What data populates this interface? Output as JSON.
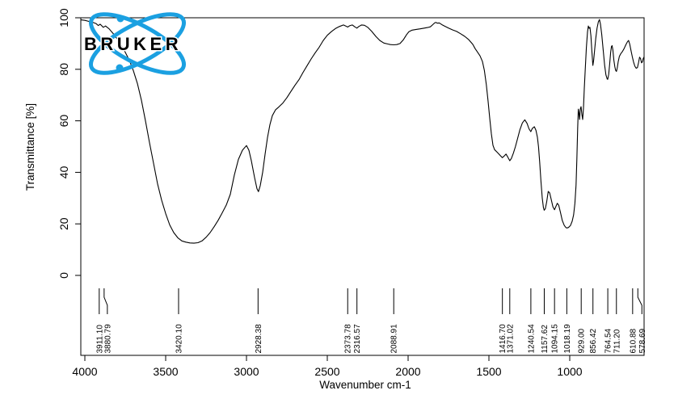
{
  "logo": {
    "text": "BRUKER",
    "text_color": "#000000",
    "accent_blue": "#1BA0E1"
  },
  "chart_data": {
    "type": "line",
    "title": "",
    "xlabel": "Wavenumber cm-1",
    "ylabel": "Transmittance [%]",
    "x_ticks": [
      4000,
      3500,
      3000,
      2500,
      2000,
      1500,
      1000
    ],
    "y_ticks": [
      100,
      80,
      60,
      40,
      20,
      0
    ],
    "xlim": [
      4025,
      540
    ],
    "ylim": [
      0,
      100
    ],
    "x_axis_reversed": true,
    "grid": false,
    "legend": "none",
    "line_color": "#000000",
    "frame_color": "#000000",
    "series": [
      {
        "name": "transmittance",
        "points": [
          [
            4025,
            99.2
          ],
          [
            4000,
            99.0
          ],
          [
            3975,
            98.6
          ],
          [
            3950,
            98.2
          ],
          [
            3930,
            97.7
          ],
          [
            3917,
            97.0
          ],
          [
            3905,
            97.5
          ],
          [
            3886,
            96.3
          ],
          [
            3872,
            96.8
          ],
          [
            3850,
            95.7
          ],
          [
            3825,
            93.9
          ],
          [
            3800,
            91.8
          ],
          [
            3775,
            89.3
          ],
          [
            3750,
            86.6
          ],
          [
            3725,
            83.5
          ],
          [
            3700,
            79.5
          ],
          [
            3675,
            74.5
          ],
          [
            3650,
            68.0
          ],
          [
            3625,
            60.0
          ],
          [
            3600,
            51.5
          ],
          [
            3575,
            43.5
          ],
          [
            3550,
            35.5
          ],
          [
            3525,
            29.2
          ],
          [
            3500,
            24.0
          ],
          [
            3475,
            19.6
          ],
          [
            3450,
            16.6
          ],
          [
            3425,
            14.6
          ],
          [
            3400,
            13.4
          ],
          [
            3375,
            12.9
          ],
          [
            3350,
            12.6
          ],
          [
            3325,
            12.5
          ],
          [
            3300,
            12.7
          ],
          [
            3275,
            13.4
          ],
          [
            3250,
            14.8
          ],
          [
            3225,
            16.6
          ],
          [
            3200,
            18.9
          ],
          [
            3175,
            21.4
          ],
          [
            3150,
            24.3
          ],
          [
            3125,
            27.3
          ],
          [
            3100,
            31.5
          ],
          [
            3075,
            39.0
          ],
          [
            3050,
            45.0
          ],
          [
            3025,
            48.6
          ],
          [
            3000,
            50.4
          ],
          [
            2985,
            48.6
          ],
          [
            2970,
            44.5
          ],
          [
            2950,
            38.0
          ],
          [
            2935,
            33.6
          ],
          [
            2926,
            32.5
          ],
          [
            2915,
            34.8
          ],
          [
            2900,
            40.0
          ],
          [
            2885,
            47.0
          ],
          [
            2870,
            53.5
          ],
          [
            2855,
            58.5
          ],
          [
            2840,
            62.0
          ],
          [
            2820,
            64.3
          ],
          [
            2800,
            65.4
          ],
          [
            2775,
            66.9
          ],
          [
            2750,
            69.0
          ],
          [
            2725,
            71.4
          ],
          [
            2700,
            73.8
          ],
          [
            2675,
            76.0
          ],
          [
            2650,
            78.8
          ],
          [
            2625,
            81.4
          ],
          [
            2600,
            84.0
          ],
          [
            2575,
            86.4
          ],
          [
            2550,
            88.6
          ],
          [
            2525,
            91.2
          ],
          [
            2500,
            93.2
          ],
          [
            2475,
            94.6
          ],
          [
            2450,
            95.8
          ],
          [
            2425,
            96.6
          ],
          [
            2400,
            97.2
          ],
          [
            2386,
            96.8
          ],
          [
            2374,
            96.4
          ],
          [
            2362,
            96.9
          ],
          [
            2345,
            97.2
          ],
          [
            2330,
            96.5
          ],
          [
            2317,
            96.0
          ],
          [
            2305,
            96.6
          ],
          [
            2288,
            97.2
          ],
          [
            2270,
            97.1
          ],
          [
            2250,
            96.3
          ],
          [
            2225,
            94.7
          ],
          [
            2200,
            92.8
          ],
          [
            2175,
            91.2
          ],
          [
            2150,
            90.2
          ],
          [
            2125,
            89.8
          ],
          [
            2110,
            89.6
          ],
          [
            2089,
            89.5
          ],
          [
            2070,
            89.6
          ],
          [
            2050,
            90.0
          ],
          [
            2030,
            91.4
          ],
          [
            2010,
            93.4
          ],
          [
            1995,
            94.6
          ],
          [
            1975,
            95.2
          ],
          [
            1950,
            95.5
          ],
          [
            1925,
            95.7
          ],
          [
            1900,
            96.0
          ],
          [
            1880,
            96.2
          ],
          [
            1862,
            96.5
          ],
          [
            1848,
            97.3
          ],
          [
            1836,
            98.0
          ],
          [
            1828,
            98.2
          ],
          [
            1820,
            97.9
          ],
          [
            1808,
            98.0
          ],
          [
            1800,
            97.7
          ],
          [
            1788,
            97.2
          ],
          [
            1775,
            96.8
          ],
          [
            1750,
            96.0
          ],
          [
            1725,
            95.3
          ],
          [
            1700,
            94.7
          ],
          [
            1675,
            93.8
          ],
          [
            1650,
            92.8
          ],
          [
            1625,
            91.5
          ],
          [
            1600,
            89.7
          ],
          [
            1585,
            88.0
          ],
          [
            1570,
            86.6
          ],
          [
            1555,
            85.2
          ],
          [
            1540,
            83.0
          ],
          [
            1528,
            79.5
          ],
          [
            1516,
            74.0
          ],
          [
            1505,
            67.5
          ],
          [
            1495,
            61.0
          ],
          [
            1485,
            55.0
          ],
          [
            1475,
            50.5
          ],
          [
            1465,
            48.8
          ],
          [
            1452,
            48.0
          ],
          [
            1440,
            47.2
          ],
          [
            1428,
            46.4
          ],
          [
            1417,
            45.7
          ],
          [
            1406,
            46.3
          ],
          [
            1394,
            47.1
          ],
          [
            1383,
            45.9
          ],
          [
            1371,
            44.5
          ],
          [
            1361,
            45.4
          ],
          [
            1349,
            47.4
          ],
          [
            1336,
            50.0
          ],
          [
            1322,
            53.3
          ],
          [
            1308,
            56.6
          ],
          [
            1293,
            59.2
          ],
          [
            1278,
            60.4
          ],
          [
            1264,
            59.0
          ],
          [
            1252,
            56.9
          ],
          [
            1241,
            55.8
          ],
          [
            1231,
            57.1
          ],
          [
            1219,
            57.7
          ],
          [
            1209,
            56.3
          ],
          [
            1200,
            53.6
          ],
          [
            1193,
            49.8
          ],
          [
            1186,
            44.0
          ],
          [
            1178,
            36.5
          ],
          [
            1170,
            30.0
          ],
          [
            1163,
            26.4
          ],
          [
            1158,
            25.3
          ],
          [
            1151,
            25.9
          ],
          [
            1143,
            28.4
          ],
          [
            1133,
            32.6
          ],
          [
            1124,
            32.0
          ],
          [
            1114,
            29.3
          ],
          [
            1104,
            26.6
          ],
          [
            1094,
            25.5
          ],
          [
            1086,
            26.7
          ],
          [
            1077,
            28.0
          ],
          [
            1068,
            27.2
          ],
          [
            1058,
            24.6
          ],
          [
            1046,
            21.3
          ],
          [
            1034,
            19.4
          ],
          [
            1024,
            18.6
          ],
          [
            1018,
            18.4
          ],
          [
            1008,
            18.6
          ],
          [
            996,
            19.3
          ],
          [
            985,
            21.0
          ],
          [
            976,
            23.5
          ],
          [
            968,
            28.0
          ],
          [
            961,
            35.0
          ],
          [
            956,
            45.0
          ],
          [
            951,
            57.0
          ],
          [
            947,
            64.5
          ],
          [
            943,
            63.0
          ],
          [
            939,
            60.5
          ],
          [
            935,
            64.5
          ],
          [
            930,
            65.5
          ],
          [
            925,
            62.5
          ],
          [
            920,
            60.5
          ],
          [
            915,
            65.0
          ],
          [
            910,
            72.5
          ],
          [
            904,
            80.0
          ],
          [
            897,
            88.5
          ],
          [
            890,
            94.5
          ],
          [
            885,
            96.8
          ],
          [
            880,
            95.9
          ],
          [
            875,
            96.3
          ],
          [
            869,
            93.0
          ],
          [
            863,
            87.0
          ],
          [
            857,
            81.5
          ],
          [
            852,
            83.5
          ],
          [
            846,
            87.5
          ],
          [
            839,
            92.0
          ],
          [
            831,
            96.0
          ],
          [
            823,
            98.4
          ],
          [
            816,
            99.3
          ],
          [
            810,
            97.6
          ],
          [
            802,
            93.5
          ],
          [
            793,
            87.5
          ],
          [
            784,
            81.5
          ],
          [
            776,
            77.8
          ],
          [
            768,
            76.2
          ],
          [
            765,
            76.1
          ],
          [
            759,
            78.0
          ],
          [
            753,
            82.0
          ],
          [
            747,
            86.5
          ],
          [
            742,
            88.8
          ],
          [
            738,
            89.2
          ],
          [
            733,
            87.5
          ],
          [
            727,
            83.5
          ],
          [
            721,
            81.0
          ],
          [
            716,
            79.6
          ],
          [
            711,
            79.2
          ],
          [
            706,
            80.5
          ],
          [
            700,
            83.0
          ],
          [
            693,
            85.0
          ],
          [
            685,
            86.0
          ],
          [
            675,
            86.8
          ],
          [
            664,
            88.0
          ],
          [
            653,
            89.5
          ],
          [
            643,
            90.7
          ],
          [
            636,
            91.2
          ],
          [
            629,
            89.8
          ],
          [
            621,
            87.3
          ],
          [
            613,
            84.9
          ],
          [
            605,
            82.8
          ],
          [
            597,
            81.2
          ],
          [
            589,
            80.4
          ],
          [
            581,
            80.7
          ],
          [
            574,
            82.7
          ],
          [
            568,
            84.7
          ],
          [
            562,
            84.2
          ],
          [
            556,
            82.5
          ],
          [
            550,
            82.9
          ],
          [
            545,
            84.2
          ],
          [
            540,
            84.8
          ]
        ]
      }
    ],
    "peak_labels": [
      {
        "label": "3911.10",
        "wn": 3911.1,
        "dx": 0
      },
      {
        "label": "3880.79",
        "wn": 3880.79,
        "dx": 4
      },
      {
        "label": "3420.10",
        "wn": 3420.1,
        "dx": 0
      },
      {
        "label": "2928.38",
        "wn": 2928.38,
        "dx": 0
      },
      {
        "label": "2373.78",
        "wn": 2373.78,
        "dx": 0
      },
      {
        "label": "2316.57",
        "wn": 2316.57,
        "dx": 0
      },
      {
        "label": "2088.91",
        "wn": 2088.91,
        "dx": 0
      },
      {
        "label": "1416.70",
        "wn": 1416.7,
        "dx": 0
      },
      {
        "label": "1371.02",
        "wn": 1371.02,
        "dx": 0
      },
      {
        "label": "1240.54",
        "wn": 1240.54,
        "dx": 0
      },
      {
        "label": "1157.62",
        "wn": 1157.62,
        "dx": 0
      },
      {
        "label": "1094.15",
        "wn": 1094.15,
        "dx": 0
      },
      {
        "label": "1018.19",
        "wn": 1018.19,
        "dx": 0
      },
      {
        "label": "929.00",
        "wn": 929.0,
        "dx": 0
      },
      {
        "label": "856.42",
        "wn": 856.42,
        "dx": 0
      },
      {
        "label": "764.54",
        "wn": 764.54,
        "dx": 0
      },
      {
        "label": "711.20",
        "wn": 711.2,
        "dx": 0
      },
      {
        "label": "610.88",
        "wn": 610.88,
        "dx": 0
      },
      {
        "label": "578.69",
        "wn": 578.69,
        "dx": 5
      }
    ]
  }
}
